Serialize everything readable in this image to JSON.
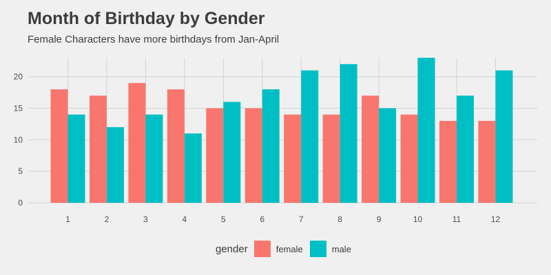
{
  "chart_data": {
    "type": "bar",
    "title": "Month of Birthday by Gender",
    "subtitle": "Female Characters have more birthdays from Jan-April",
    "xlabel": "",
    "ylabel": "",
    "categories": [
      "1",
      "2",
      "3",
      "4",
      "5",
      "6",
      "7",
      "8",
      "9",
      "10",
      "11",
      "12"
    ],
    "series": [
      {
        "name": "female",
        "color": "#f8766d",
        "values": [
          18,
          17,
          19,
          18,
          15,
          15,
          14,
          14,
          17,
          14,
          13,
          13
        ]
      },
      {
        "name": "male",
        "color": "#00bfc4",
        "values": [
          14,
          12,
          14,
          11,
          16,
          18,
          21,
          22,
          15,
          23,
          17,
          21
        ]
      }
    ],
    "ylim": [
      0,
      24
    ],
    "yticks": [
      0,
      5,
      10,
      15,
      20
    ],
    "grid": true,
    "legend": {
      "title": "gender",
      "position": "bottom"
    }
  }
}
